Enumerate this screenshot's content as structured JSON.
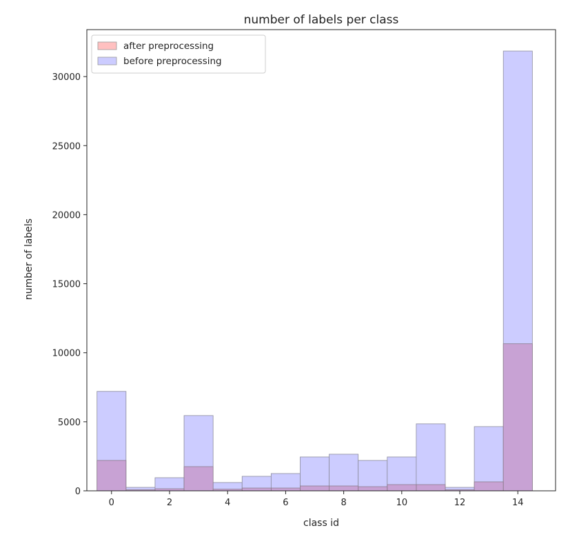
{
  "chart_data": {
    "type": "bar",
    "title": "number of labels per class",
    "xlabel": "class id",
    "ylabel": "number of labels",
    "categories": [
      0,
      1,
      2,
      3,
      4,
      5,
      6,
      7,
      8,
      9,
      10,
      11,
      12,
      13,
      14
    ],
    "x_ticks": [
      0,
      2,
      4,
      6,
      8,
      10,
      12,
      14
    ],
    "y_ticks": [
      0,
      5000,
      10000,
      15000,
      20000,
      25000,
      30000
    ],
    "xlim": [
      -0.85,
      15.3
    ],
    "ylim": [
      0,
      33400
    ],
    "grid": false,
    "legend_position": "upper-left",
    "series": [
      {
        "name": "before preprocessing",
        "color": "#ccccff",
        "values": [
          7200,
          250,
          950,
          5450,
          600,
          1050,
          1250,
          2450,
          2650,
          2200,
          2450,
          4850,
          250,
          4650,
          31850
        ]
      },
      {
        "name": "after preprocessing",
        "color": "#ffc0c0",
        "values": [
          2200,
          80,
          150,
          1750,
          120,
          200,
          200,
          350,
          350,
          300,
          450,
          450,
          80,
          650,
          10650
        ]
      }
    ],
    "overlap_color": "#c8a2d4"
  }
}
